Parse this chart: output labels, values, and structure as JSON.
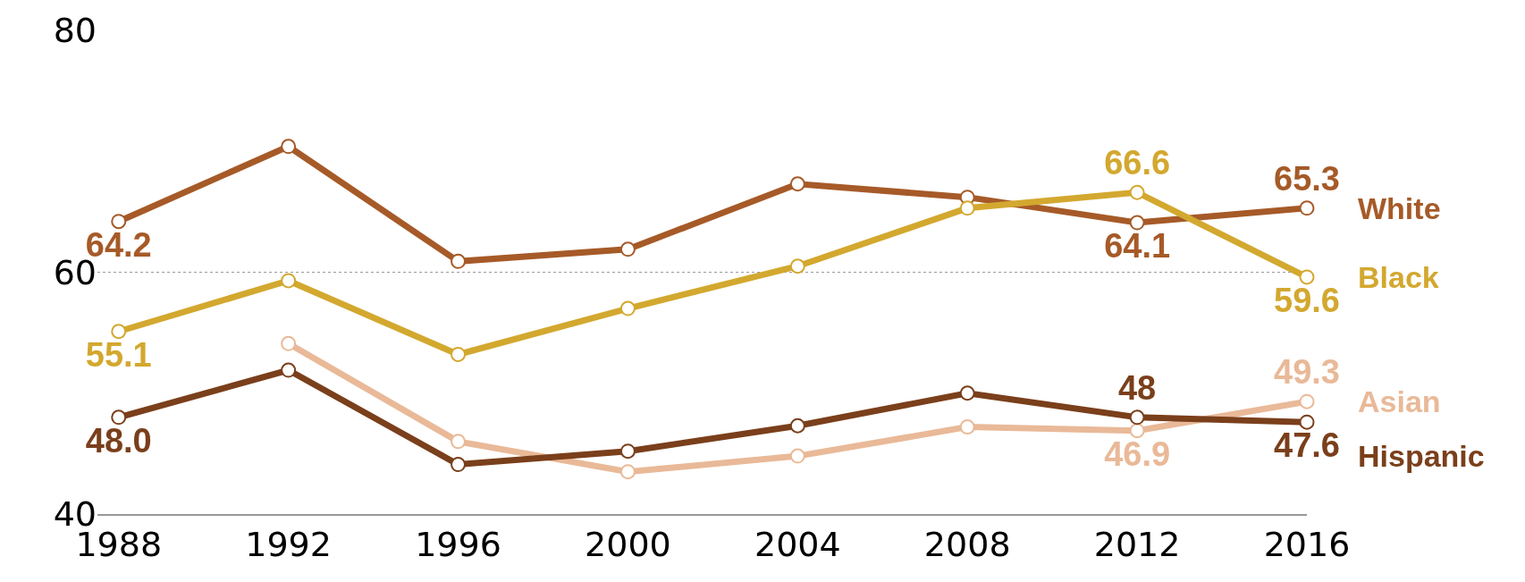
{
  "chart_data": {
    "type": "line",
    "x": [
      1988,
      1992,
      1996,
      2000,
      2004,
      2008,
      2012,
      2016
    ],
    "xlim": [
      1987.5,
      2016
    ],
    "xticks": [
      1988,
      1992,
      1996,
      2000,
      2004,
      2008,
      2012,
      2016
    ],
    "ylim": [
      40,
      80
    ],
    "yticks": [
      40,
      60,
      80
    ],
    "grid": "y",
    "marker": "circle",
    "line_style": "solid",
    "legend": false,
    "series": [
      {
        "name": "White",
        "color": "#a65a28",
        "values": [
          64.2,
          70.4,
          60.9,
          61.9,
          67.3,
          66.2,
          64.1,
          65.3
        ],
        "value_labels": [
          "64.2",
          null,
          null,
          null,
          null,
          null,
          "64.1",
          "65.3"
        ]
      },
      {
        "name": "Black",
        "color": "#d3a82f",
        "values": [
          55.1,
          59.3,
          53.2,
          57.0,
          60.5,
          65.3,
          66.6,
          59.6
        ],
        "value_labels": [
          "55.1",
          null,
          null,
          null,
          null,
          null,
          "66.6",
          "59.6"
        ]
      },
      {
        "name": "Asian",
        "color": "#e9b998",
        "values": [
          null,
          54.1,
          46.0,
          43.5,
          44.8,
          47.2,
          46.9,
          49.3
        ],
        "value_labels": [
          null,
          null,
          null,
          null,
          null,
          null,
          "46.9",
          "49.3"
        ]
      },
      {
        "name": "Hispanic",
        "color": "#7a3f1b",
        "values": [
          48.0,
          51.9,
          44.1,
          45.2,
          47.3,
          50.0,
          48,
          47.6
        ],
        "value_labels": [
          "48.0",
          null,
          null,
          null,
          null,
          null,
          "48",
          "47.6"
        ]
      }
    ]
  }
}
